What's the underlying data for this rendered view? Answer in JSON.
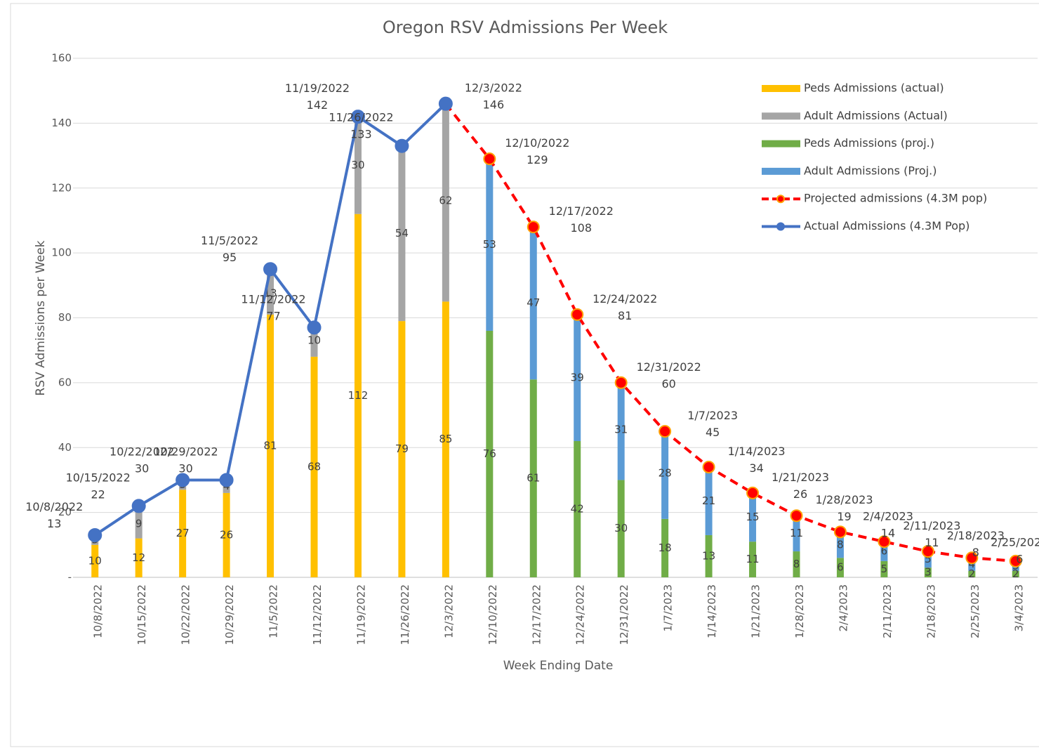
{
  "chart_data": {
    "type": "bar-line",
    "title": "Oregon RSV Admissions Per Week",
    "x_label": "Week Ending Date",
    "y_label": "RSV Admissions per Week",
    "categories": [
      "10/8/2022",
      "10/15/2022",
      "10/22/2022",
      "10/29/2022",
      "11/5/2022",
      "11/12/2022",
      "11/19/2022",
      "11/26/2022",
      "12/3/2022",
      "12/10/2022",
      "12/17/2022",
      "12/24/2022",
      "12/31/2022",
      "1/7/2023",
      "1/14/2023",
      "1/21/2023",
      "1/28/2023",
      "2/4/2023",
      "2/11/2023",
      "2/18/2023",
      "2/25/2023",
      "3/4/2023"
    ],
    "ylim": [
      0,
      160
    ],
    "yticks": [
      {
        "value": 0,
        "label": "-"
      },
      20,
      40,
      60,
      80,
      100,
      120,
      140,
      160
    ],
    "grid": true,
    "legend": "right",
    "series": [
      {
        "name": "Peds Admissions (actual)",
        "kind": "bar",
        "color": "#ffc000",
        "values": [
          10,
          12,
          27,
          26,
          81,
          68,
          112,
          79,
          85,
          null,
          null,
          null,
          null,
          null,
          null,
          null,
          null,
          null,
          null,
          null,
          null,
          null
        ]
      },
      {
        "name": "Adult Admissions (Actual)",
        "kind": "bar",
        "color": "#a5a5a5",
        "values": [
          3,
          9,
          3,
          4,
          13,
          10,
          30,
          54,
          62,
          null,
          null,
          null,
          null,
          null,
          null,
          null,
          null,
          null,
          null,
          null,
          null,
          null
        ]
      },
      {
        "name": "Peds Admissions (proj.)",
        "kind": "bar",
        "color": "#70ad47",
        "values": [
          null,
          null,
          null,
          null,
          null,
          null,
          null,
          null,
          null,
          76,
          61,
          42,
          30,
          18,
          13,
          11,
          8,
          6,
          5,
          3,
          2,
          2
        ]
      },
      {
        "name": "Adult Admissions (Proj.)",
        "kind": "bar",
        "color": "#5b9bd5",
        "values": [
          null,
          null,
          null,
          null,
          null,
          null,
          null,
          null,
          null,
          53,
          47,
          39,
          31,
          28,
          21,
          15,
          11,
          8,
          6,
          5,
          4,
          3
        ]
      },
      {
        "name": "Projected admissions (4.3M pop)",
        "kind": "line",
        "dashed": true,
        "color": "#ff0000",
        "marker_edge": "#ffa000",
        "values": [
          null,
          null,
          null,
          null,
          null,
          null,
          null,
          null,
          146,
          129,
          108,
          81,
          60,
          45,
          34,
          26,
          19,
          14,
          11,
          8,
          6,
          5
        ]
      },
      {
        "name": "Actual Admissions (4.3M Pop)",
        "kind": "line",
        "dashed": false,
        "color": "#4472c4",
        "marker_edge": "#4472c4",
        "values": [
          13,
          22,
          30,
          30,
          95,
          77,
          142,
          133,
          146,
          null,
          null,
          null,
          null,
          null,
          null,
          null,
          null,
          null,
          null,
          null,
          null,
          null
        ]
      }
    ]
  }
}
